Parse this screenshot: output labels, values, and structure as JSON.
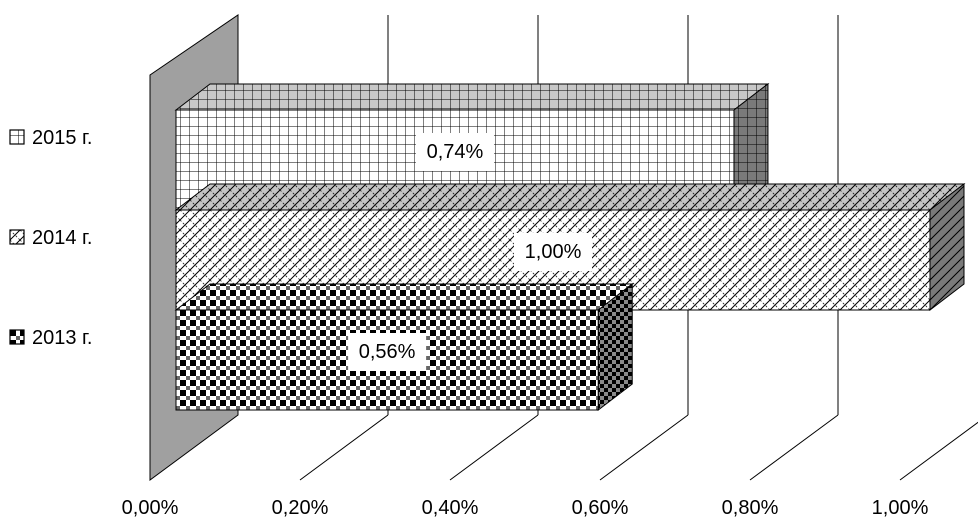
{
  "chart_data": {
    "type": "bar",
    "orientation": "horizontal",
    "style": "3d",
    "title": "",
    "xlabel": "",
    "ylabel": "",
    "xlim": [
      0,
      1
    ],
    "x_ticks": [
      "0,00%",
      "0,20%",
      "0,40%",
      "0,60%",
      "0,80%",
      "1,00%"
    ],
    "grid": true,
    "legend_position": "left",
    "series": [
      {
        "name": "2015 г.",
        "value": 0.74,
        "label": "0,74%",
        "pattern": "grid"
      },
      {
        "name": "2014 г.",
        "value": 1.0,
        "label": "1,00%",
        "pattern": "diagonal-cross"
      },
      {
        "name": "2013 г.",
        "value": 0.56,
        "label": "0,56%",
        "pattern": "checker"
      }
    ],
    "colors": {
      "wall": "#a0a0a0",
      "stroke": "#000000",
      "background": "#ffffff"
    }
  }
}
